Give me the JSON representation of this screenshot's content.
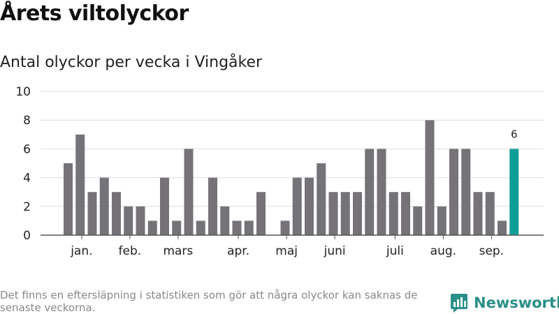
{
  "title": "Årets viltolyckor",
  "subtitle": "Antal olyckor per vecka i Vingåker",
  "footnote": "Det finns en eftersläpning i statistiken som gör att några olyckor kan saknas de senaste veckorna.",
  "brand": "Newsworthy",
  "colors": {
    "bar": "#757278",
    "highlight": "#0e9e96",
    "grid": "#dddddd",
    "brand": "#2a8f88"
  },
  "chart_data": {
    "type": "bar",
    "title": "Antal olyckor per vecka i Vingåker",
    "xlabel": "",
    "ylabel": "",
    "ylim": [
      0,
      10
    ],
    "yticks": [
      0,
      2,
      4,
      6,
      8,
      10
    ],
    "grid": true,
    "values": [
      5,
      7,
      3,
      4,
      3,
      2,
      2,
      1,
      4,
      1,
      6,
      1,
      4,
      2,
      1,
      1,
      3,
      0,
      1,
      4,
      4,
      5,
      3,
      3,
      3,
      6,
      6,
      3,
      3,
      2,
      8,
      2,
      6,
      6,
      3,
      3,
      1,
      6
    ],
    "highlight_index": 37,
    "highlight_label": "6",
    "month_labels": [
      {
        "label": "jan.",
        "week": 1.5
      },
      {
        "label": "feb.",
        "week": 5.5
      },
      {
        "label": "mars",
        "week": 9.5
      },
      {
        "label": "apr.",
        "week": 14.5
      },
      {
        "label": "maj",
        "week": 18.5
      },
      {
        "label": "juni",
        "week": 22.5
      },
      {
        "label": "juli",
        "week": 27.5
      },
      {
        "label": "aug.",
        "week": 31.5
      },
      {
        "label": "sep.",
        "week": 35.5
      }
    ]
  }
}
